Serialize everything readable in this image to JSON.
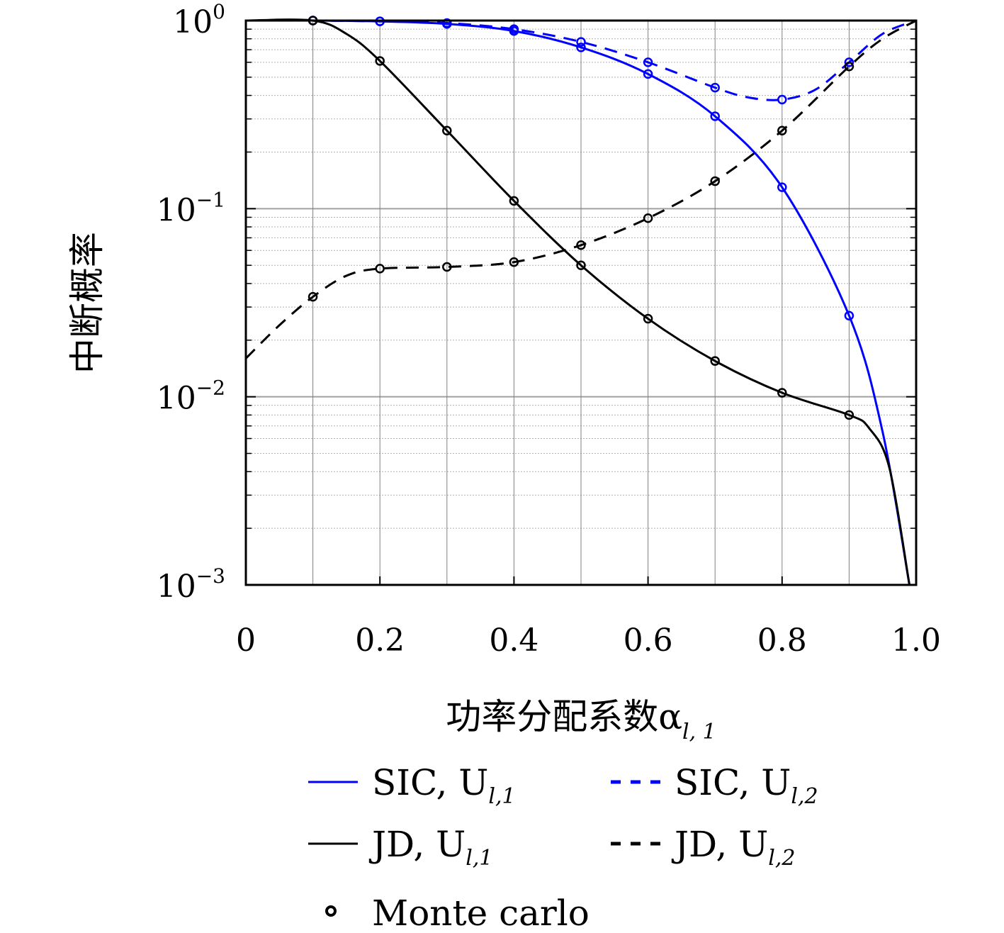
{
  "chart_data": {
    "type": "line",
    "xlabel": "功率分配系数α",
    "xlabel_sub": "l, 1",
    "ylabel": "中断概率",
    "xlim": [
      0,
      1.0
    ],
    "ylim": [
      0.001,
      1
    ],
    "yscale": "log",
    "grid": true,
    "x_ticks": [
      "0",
      "0.2",
      "0.4",
      "0.6",
      "0.8",
      "1.0"
    ],
    "y_ticks": [
      {
        "base": "10",
        "exp": "0"
      },
      {
        "base": "10",
        "exp": "−1"
      },
      {
        "base": "10",
        "exp": "−2"
      },
      {
        "base": "10",
        "exp": "−3"
      }
    ],
    "series": [
      {
        "name": "SIC, U",
        "sub": "l,1",
        "color": "#0000ff",
        "dash": "solid",
        "x": [
          0.0,
          0.1,
          0.2,
          0.3,
          0.4,
          0.5,
          0.6,
          0.7,
          0.8,
          0.9,
          0.95,
          0.99
        ],
        "y": [
          1.0,
          1.0,
          0.99,
          0.96,
          0.88,
          0.72,
          0.52,
          0.31,
          0.13,
          0.027,
          0.0065,
          0.001
        ],
        "markers_x": [
          0.1,
          0.2,
          0.3,
          0.4,
          0.5,
          0.6,
          0.7,
          0.8,
          0.9
        ],
        "markers_y": [
          1.0,
          0.99,
          0.96,
          0.88,
          0.72,
          0.52,
          0.31,
          0.13,
          0.027
        ]
      },
      {
        "name": "SIC, U",
        "sub": "l,2",
        "color": "#0000ff",
        "dash": "dashed",
        "x": [
          0.0,
          0.1,
          0.2,
          0.3,
          0.4,
          0.5,
          0.6,
          0.7,
          0.75,
          0.8,
          0.85,
          0.9,
          0.95,
          1.0
        ],
        "y": [
          1.0,
          1.0,
          0.99,
          0.97,
          0.9,
          0.77,
          0.6,
          0.44,
          0.39,
          0.38,
          0.43,
          0.6,
          0.85,
          1.0
        ],
        "markers_x": [
          0.1,
          0.2,
          0.3,
          0.4,
          0.5,
          0.6,
          0.7,
          0.8,
          0.9
        ],
        "markers_y": [
          1.0,
          0.99,
          0.97,
          0.9,
          0.77,
          0.6,
          0.44,
          0.38,
          0.6
        ]
      },
      {
        "name": "JD, U",
        "sub": "l,1",
        "color": "#000000",
        "dash": "solid",
        "x": [
          0.0,
          0.1,
          0.15,
          0.2,
          0.3,
          0.4,
          0.5,
          0.6,
          0.7,
          0.8,
          0.9,
          0.93,
          0.96,
          0.99
        ],
        "y": [
          1.0,
          1.0,
          0.85,
          0.61,
          0.26,
          0.11,
          0.05,
          0.026,
          0.0155,
          0.0105,
          0.008,
          0.0068,
          0.0042,
          0.001
        ],
        "markers_x": [
          0.1,
          0.2,
          0.3,
          0.4,
          0.5,
          0.6,
          0.7,
          0.8,
          0.9
        ],
        "markers_y": [
          1.0,
          0.61,
          0.26,
          0.11,
          0.05,
          0.026,
          0.0155,
          0.0105,
          0.008
        ]
      },
      {
        "name": "JD, U",
        "sub": "l,2",
        "color": "#000000",
        "dash": "dashed",
        "x": [
          0.0,
          0.05,
          0.1,
          0.15,
          0.2,
          0.3,
          0.4,
          0.5,
          0.6,
          0.7,
          0.8,
          0.9,
          0.95,
          1.0
        ],
        "y": [
          0.016,
          0.024,
          0.034,
          0.044,
          0.048,
          0.049,
          0.052,
          0.064,
          0.089,
          0.14,
          0.26,
          0.57,
          0.8,
          1.0
        ],
        "markers_x": [
          0.1,
          0.2,
          0.3,
          0.4,
          0.5,
          0.6,
          0.7,
          0.8,
          0.9
        ],
        "markers_y": [
          0.034,
          0.048,
          0.049,
          0.052,
          0.064,
          0.089,
          0.14,
          0.26,
          0.57
        ]
      }
    ],
    "legend": {
      "position": "bottom",
      "monte_carlo_label": "Monte carlo"
    }
  }
}
